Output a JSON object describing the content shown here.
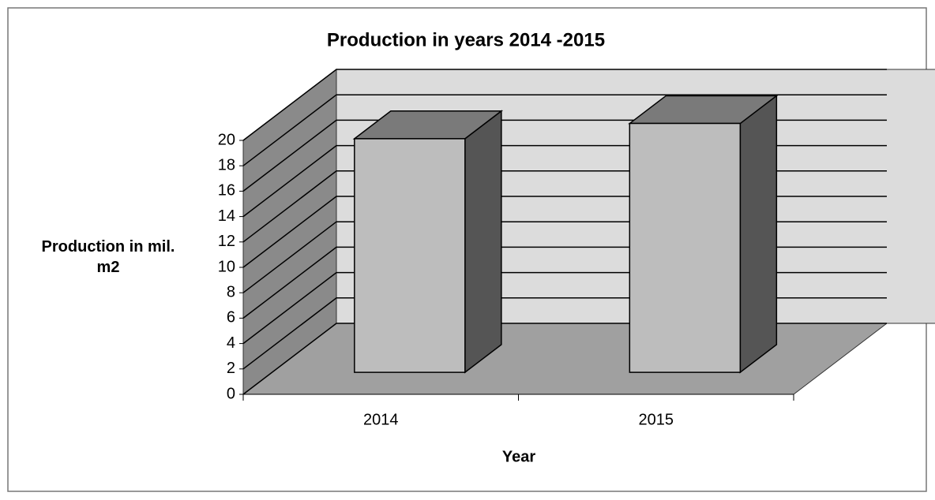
{
  "chart_data": {
    "type": "bar3d",
    "title": "Production in years 2014 -2015",
    "x_label": "Year",
    "y_label": "Production in mil. m2",
    "categories": [
      "2014",
      "2015"
    ],
    "values": [
      18.4,
      19.6
    ],
    "ylim": [
      0,
      20
    ],
    "yticks": [
      0,
      2,
      4,
      6,
      8,
      10,
      12,
      14,
      16,
      18,
      20
    ],
    "grid": true,
    "color": "#bdbdbd"
  }
}
